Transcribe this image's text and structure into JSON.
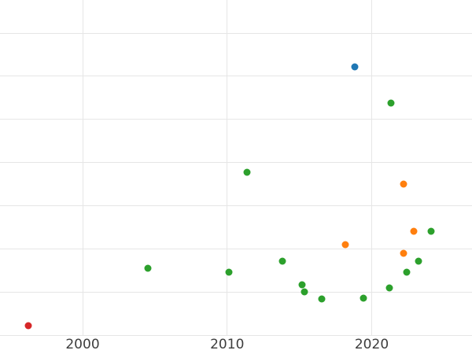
{
  "chart_data": {
    "type": "scatter",
    "title": "",
    "xlabel": "",
    "ylabel": "",
    "grid": true,
    "legend_position": "none",
    "background_color": "#ffffff",
    "grid_color": "#e6e6e6",
    "tick_label_color": "#3d3d3d",
    "x_axis": {
      "ticks": [
        {
          "value": 2000,
          "label": "2000"
        },
        {
          "value": 2010,
          "label": "2010"
        },
        {
          "value": 2020,
          "label": "2020"
        }
      ],
      "visible_range": [
        1994.3,
        2026.9
      ]
    },
    "y_axis": {
      "tick_labels_visible": false,
      "unit": "gridline-units (y-axis labels are cropped out of the visible frame; values measured as gridlines above the bottom gridline)",
      "gridline_values": [
        0,
        1,
        2,
        3,
        4,
        5,
        6,
        7
      ],
      "visible_range": [
        0,
        7.77
      ]
    },
    "series": [
      {
        "name": "blue",
        "color": "#1f77b4",
        "points": [
          {
            "x": 2018.83,
            "y": 6.22
          }
        ]
      },
      {
        "name": "orange",
        "color": "#ff7f0e",
        "points": [
          {
            "x": 2018.19,
            "y": 2.1
          },
          {
            "x": 2022.2,
            "y": 1.89
          },
          {
            "x": 2022.22,
            "y": 3.5
          },
          {
            "x": 2022.9,
            "y": 2.41
          }
        ]
      },
      {
        "name": "green",
        "color": "#2ca02c",
        "points": [
          {
            "x": 2004.5,
            "y": 1.55
          },
          {
            "x": 2010.13,
            "y": 1.46
          },
          {
            "x": 2011.39,
            "y": 3.77
          },
          {
            "x": 2013.82,
            "y": 1.71
          },
          {
            "x": 2015.2,
            "y": 1.16
          },
          {
            "x": 2015.35,
            "y": 1.0
          },
          {
            "x": 2016.54,
            "y": 0.84
          },
          {
            "x": 2019.44,
            "y": 0.85
          },
          {
            "x": 2021.24,
            "y": 1.09
          },
          {
            "x": 2021.36,
            "y": 5.37
          },
          {
            "x": 2022.44,
            "y": 1.45
          },
          {
            "x": 2023.22,
            "y": 1.72
          },
          {
            "x": 2024.09,
            "y": 2.41
          }
        ]
      },
      {
        "name": "red",
        "color": "#d62728",
        "points": [
          {
            "x": 1996.26,
            "y": 0.22
          }
        ]
      }
    ]
  }
}
